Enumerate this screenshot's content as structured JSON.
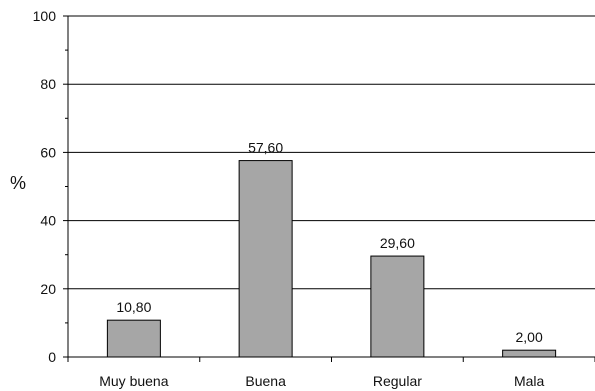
{
  "chart_data": {
    "type": "bar",
    "categories": [
      "Muy buena",
      "Buena",
      "Regular",
      "Mala"
    ],
    "values": [
      10.8,
      57.6,
      29.6,
      2.0
    ],
    "value_labels": [
      "10,80",
      "57,60",
      "29,60",
      "2,00"
    ],
    "ylabel": "%",
    "ylim": [
      0,
      100
    ],
    "yticks": [
      0,
      20,
      40,
      60,
      80,
      100
    ],
    "grid": true,
    "colors": {
      "bar": "#a6a6a6",
      "bar_stroke": "#000000",
      "grid": "#000000",
      "axis": "#000000"
    }
  }
}
